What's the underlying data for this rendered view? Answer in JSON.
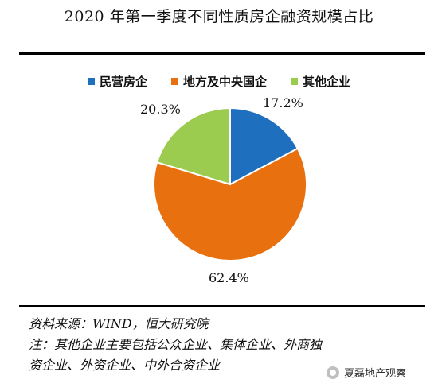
{
  "chart_data": {
    "type": "pie",
    "title": "2020 年第一季度不同性质房企融资规模占比",
    "categories": [
      "民营房企",
      "地方及中央国企",
      "其他企业"
    ],
    "values": [
      17.2,
      62.4,
      20.3
    ],
    "labels": [
      "17.2%",
      "62.4%",
      "20.3%"
    ],
    "colors": [
      "#1f6fbf",
      "#e8700e",
      "#9ccc4f"
    ],
    "legend": "top"
  },
  "notes": {
    "source": "资料来源：WIND，恒大研究院",
    "note_line1": "注：其他企业主要包括公众企业、集体企业、外商独",
    "note_line2": "资企业、外资企业、中外合资企业"
  },
  "watermark": {
    "text": "夏磊地产观察",
    "icon": "wechat-icon"
  }
}
